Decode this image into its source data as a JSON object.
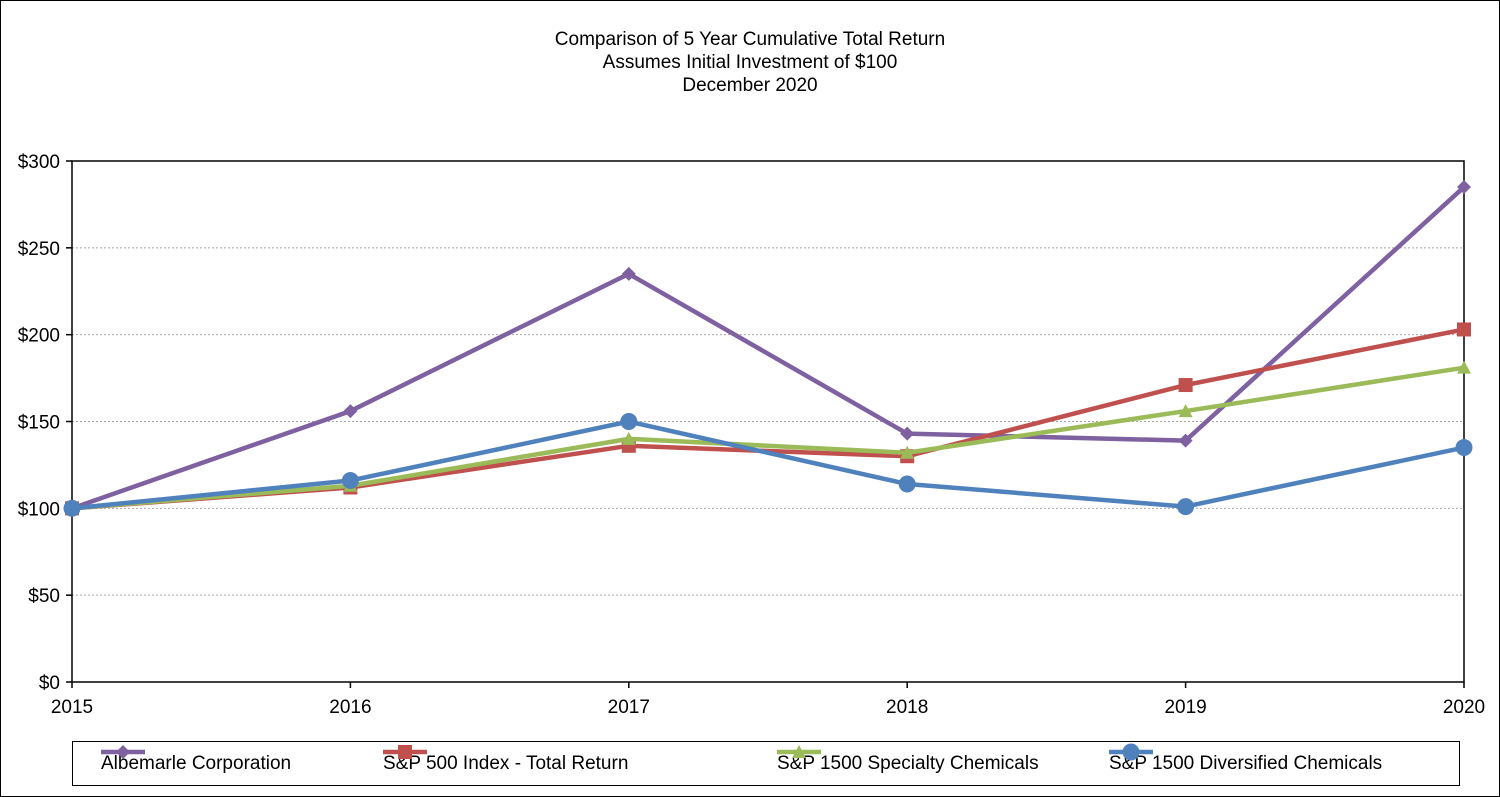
{
  "chart_data": {
    "type": "line",
    "title": "Comparison of 5 Year Cumulative Total Return",
    "subtitle_lines": [
      "Assumes Initial Investment of $100",
      "December 2020"
    ],
    "xlabel": "",
    "ylabel": "",
    "categories": [
      "2015",
      "2016",
      "2017",
      "2018",
      "2019",
      "2020"
    ],
    "ylim": [
      0,
      300
    ],
    "yticks": [
      0,
      50,
      100,
      150,
      200,
      250,
      300
    ],
    "ytick_labels": [
      "$0",
      "$50",
      "$100",
      "$150",
      "$200",
      "$250",
      "$300"
    ],
    "grid": true,
    "legend_position": "bottom",
    "series": [
      {
        "name": "Albemarle Corporation",
        "color": "#7f60a1",
        "marker": "diamond",
        "values": [
          100,
          156,
          235,
          143,
          139,
          285
        ]
      },
      {
        "name": "S&P 500 Index - Total Return",
        "color": "#c0504d",
        "marker": "square",
        "values": [
          100,
          112,
          136,
          130,
          171,
          203
        ]
      },
      {
        "name": "S&P 1500 Specialty Chemicals",
        "color": "#9bbb59",
        "marker": "triangle",
        "values": [
          100,
          113,
          140,
          132,
          156,
          181
        ]
      },
      {
        "name": "S&P 1500 Diversified Chemicals",
        "color": "#4f81bd",
        "marker": "circle",
        "values": [
          100,
          116,
          150,
          114,
          101,
          135
        ]
      }
    ]
  }
}
